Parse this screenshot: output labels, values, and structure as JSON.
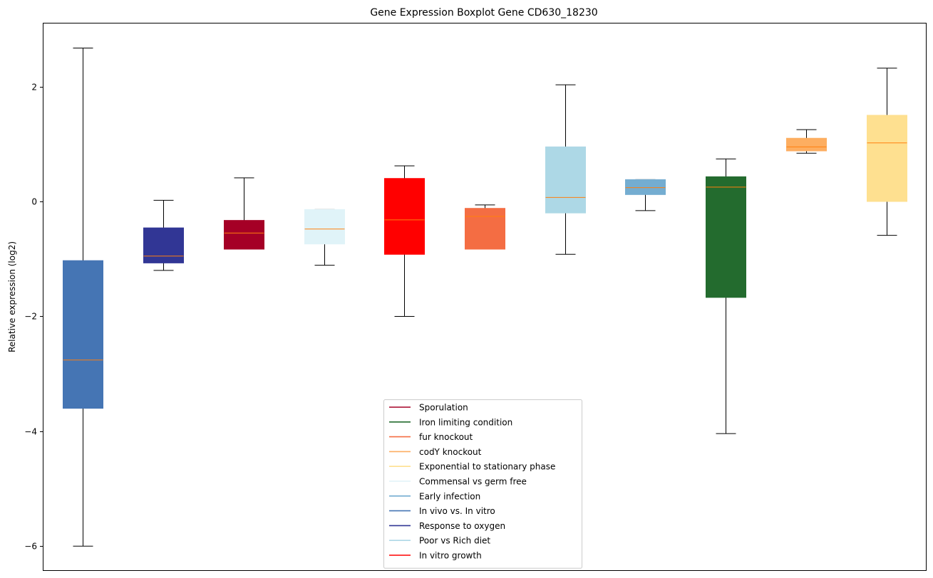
{
  "chart_data": {
    "type": "boxplot",
    "title": "Gene Expression Boxplot Gene CD630_18230",
    "xlabel": "",
    "ylabel": "Relative expression (log2)",
    "ylim": [
      -6.43,
      3.11
    ],
    "yticks": [
      2,
      0,
      -2,
      -4,
      -6
    ],
    "ytick_labels": [
      "2",
      "0",
      "−2",
      "−4",
      "−6"
    ],
    "grid": false,
    "legend_position": "bottom-center",
    "median_color": "#ff7f0e",
    "boxes": [
      {
        "label": "In vivo vs. In vitro",
        "color": "#4575b4",
        "whisker_low": -6.0,
        "q1": -3.6,
        "median": -2.76,
        "q3": -1.03,
        "whisker_high": 2.67
      },
      {
        "label": "Response to oxygen",
        "color": "#313695",
        "whisker_low": -1.2,
        "q1": -1.07,
        "median": -0.95,
        "q3": -0.46,
        "whisker_high": 0.02
      },
      {
        "label": "Sporulation",
        "color": "#a50026",
        "whisker_low": -0.83,
        "q1": -0.83,
        "median": -0.55,
        "q3": -0.33,
        "whisker_high": 0.41
      },
      {
        "label": "Commensal vs germ free",
        "color": "#e0f3f8",
        "whisker_low": -1.11,
        "q1": -0.74,
        "median": -0.48,
        "q3": -0.14,
        "whisker_high": -0.14
      },
      {
        "label": "In vitro growth",
        "color": "#ff0000",
        "whisker_low": -2.0,
        "q1": -0.92,
        "median": -0.32,
        "q3": 0.4,
        "whisker_high": 0.62
      },
      {
        "label": "fur knockout",
        "color": "#f46d43",
        "whisker_low": -0.83,
        "q1": -0.83,
        "median": -0.26,
        "q3": -0.12,
        "whisker_high": -0.06
      },
      {
        "label": "Poor vs Rich diet",
        "color": "#add8e6",
        "whisker_low": -0.92,
        "q1": -0.2,
        "median": 0.07,
        "q3": 0.95,
        "whisker_high": 2.03
      },
      {
        "label": "Early infection",
        "color": "#74add1",
        "whisker_low": -0.16,
        "q1": 0.12,
        "median": 0.24,
        "q3": 0.38,
        "whisker_high": 0.38
      },
      {
        "label": "Iron limiting condition",
        "color": "#236b2e",
        "whisker_low": -4.04,
        "q1": -1.67,
        "median": 0.25,
        "q3": 0.43,
        "whisker_high": 0.74
      },
      {
        "label": "codY knockout",
        "color": "#fdae61",
        "whisker_low": 0.84,
        "q1": 0.88,
        "median": 0.95,
        "q3": 1.1,
        "whisker_high": 1.25
      },
      {
        "label": "Exponential to stationary phase",
        "color": "#fee090",
        "whisker_low": -0.59,
        "q1": 0.0,
        "median": 1.02,
        "q3": 1.5,
        "whisker_high": 2.32
      }
    ],
    "legend": [
      {
        "label": "Sporulation",
        "color": "#a50026"
      },
      {
        "label": "Iron limiting condition",
        "color": "#236b2e"
      },
      {
        "label": "fur knockout",
        "color": "#f46d43"
      },
      {
        "label": "codY knockout",
        "color": "#fdae61"
      },
      {
        "label": "Exponential to stationary phase",
        "color": "#fee090"
      },
      {
        "label": "Commensal vs germ free",
        "color": "#e0f3f8"
      },
      {
        "label": "Early infection",
        "color": "#74add1"
      },
      {
        "label": "In vivo vs. In vitro",
        "color": "#4575b4"
      },
      {
        "label": "Response to oxygen",
        "color": "#313695"
      },
      {
        "label": "Poor vs Rich diet",
        "color": "#add8e6"
      },
      {
        "label": "In vitro growth",
        "color": "#ff0000"
      }
    ]
  }
}
